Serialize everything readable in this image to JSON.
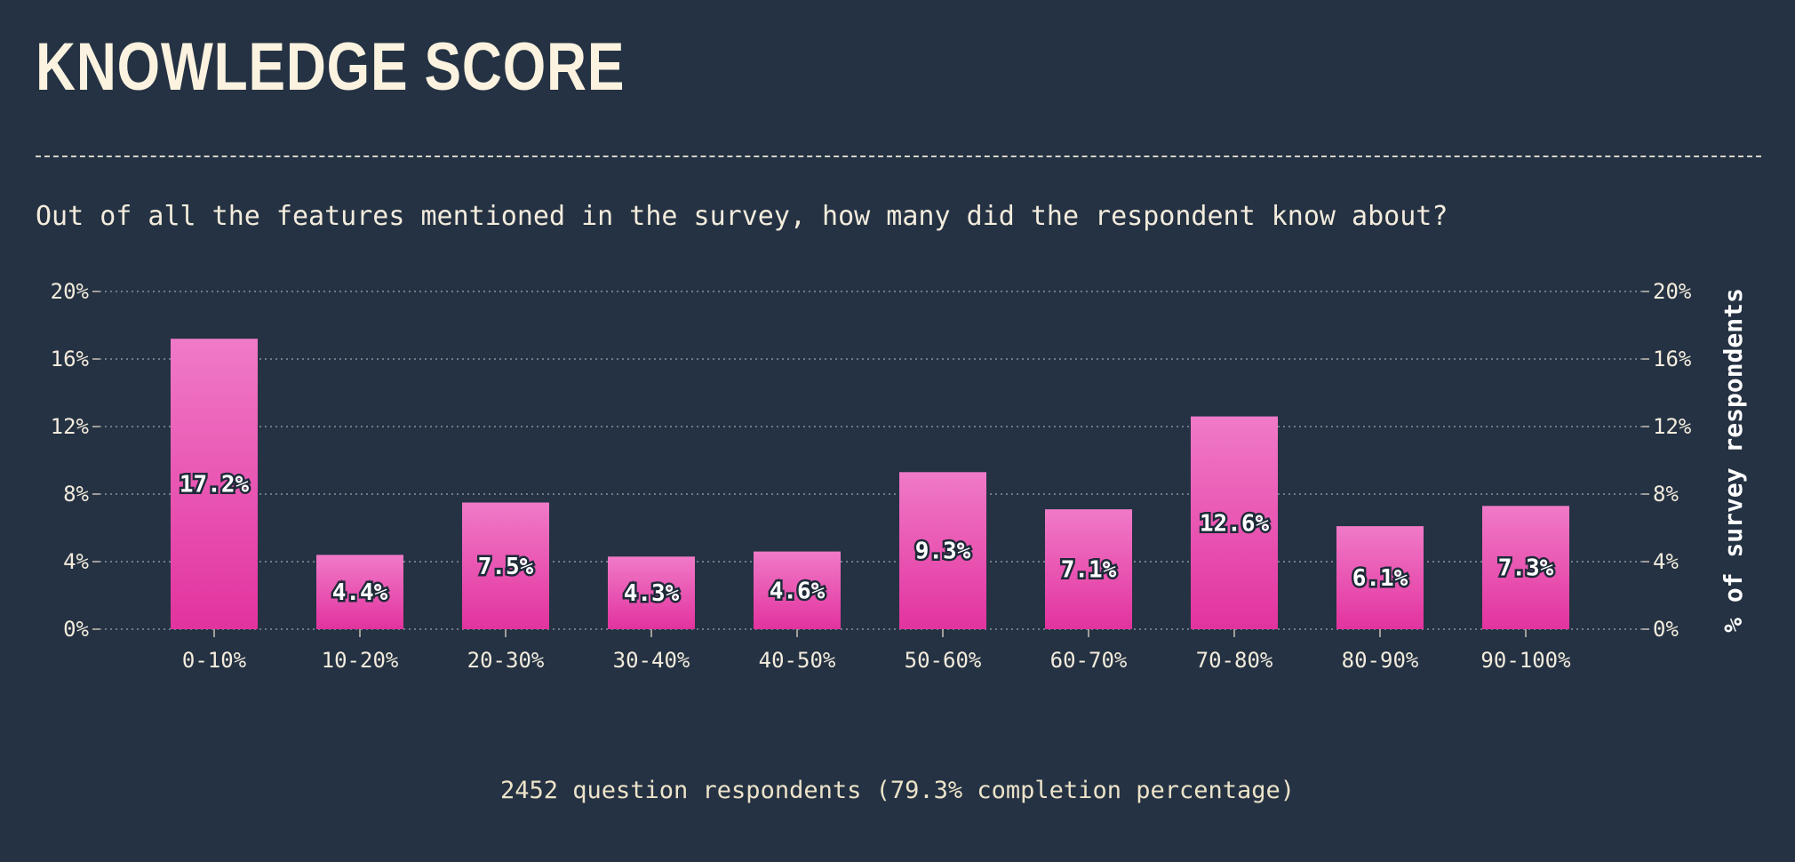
{
  "header": {
    "title": "KNOWLEDGE SCORE",
    "subtitle": "Out of all the features mentioned in the survey, how many did the respondent know about?"
  },
  "footer": {
    "note": "2452 question respondents (79.3% completion percentage)"
  },
  "colors": {
    "background": "#253243",
    "bar_top": "#f07ac8",
    "bar_bottom": "#e2339e",
    "grid": "#8a93a0"
  },
  "chart_data": {
    "type": "bar",
    "categories": [
      "0-10%",
      "10-20%",
      "20-30%",
      "30-40%",
      "40-50%",
      "50-60%",
      "60-70%",
      "70-80%",
      "80-90%",
      "90-100%"
    ],
    "values": [
      17.2,
      4.4,
      7.5,
      4.3,
      4.6,
      9.3,
      7.1,
      12.6,
      6.1,
      7.3
    ],
    "value_labels": [
      "17.2%",
      "4.4%",
      "7.5%",
      "4.3%",
      "4.6%",
      "9.3%",
      "7.1%",
      "12.6%",
      "6.1%",
      "7.3%"
    ],
    "ylim": [
      0,
      20
    ],
    "yticks": [
      0,
      4,
      8,
      12,
      16,
      20
    ],
    "ytick_labels": [
      "0%",
      "4%",
      "8%",
      "12%",
      "16%",
      "20%"
    ],
    "ylabel": "% of survey respondents",
    "grid": true,
    "legend": "none"
  }
}
